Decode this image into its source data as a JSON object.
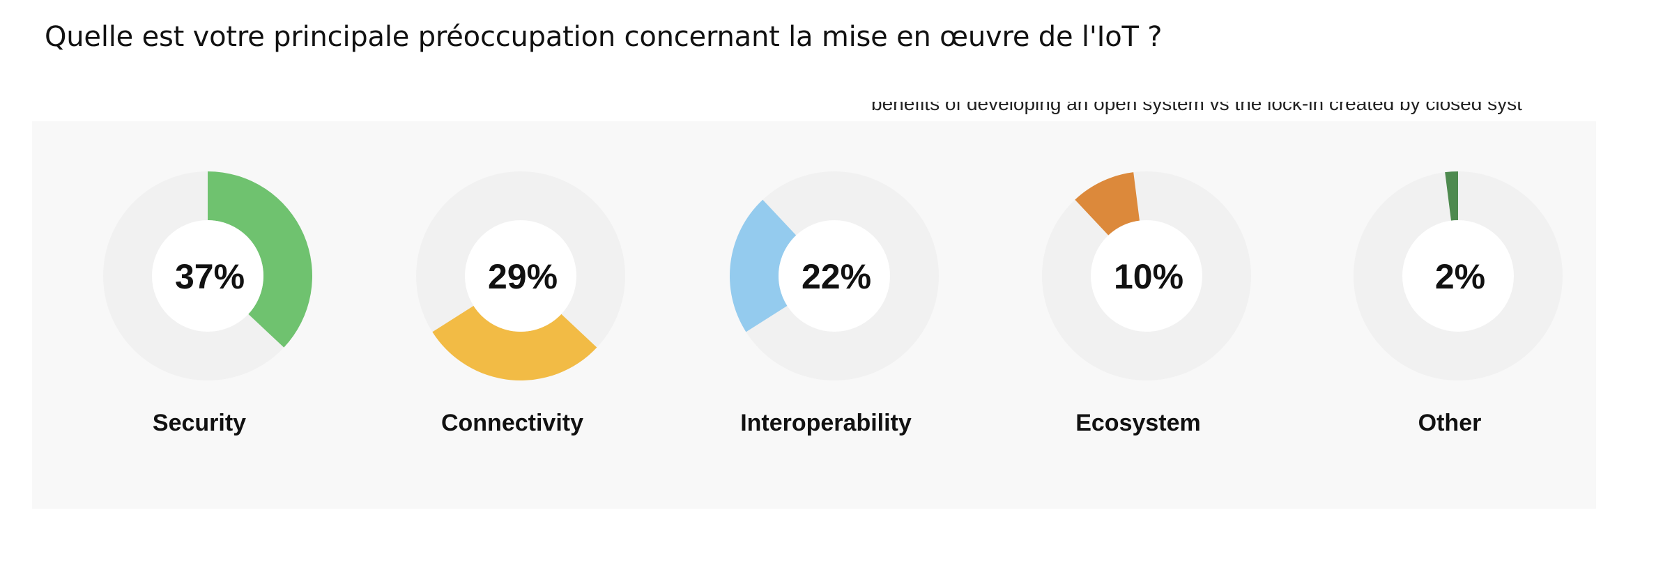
{
  "page": {
    "title": "Quelle est votre principale préoccupation concernant la mise en œuvre de l'IoT ?",
    "partial_text": "benefits of developing an open system vs the lock-in created by closed syst"
  },
  "chart_data": {
    "type": "pie",
    "style": "donut-row",
    "track_color": "#f1f1f1",
    "center_color": "#ffffff",
    "categories": [
      "Security",
      "Connectivity",
      "Interoperability",
      "Ecosystem",
      "Other"
    ],
    "values": [
      37,
      29,
      22,
      10,
      2
    ],
    "value_labels": [
      "37%",
      "29%",
      "22%",
      "10%",
      "2%"
    ],
    "start_percent": [
      0,
      37,
      66,
      88,
      98
    ],
    "colors": [
      "#6fc26f",
      "#f2bb45",
      "#94cbee",
      "#dc893b",
      "#4e8a4f"
    ],
    "legend": "none",
    "grid": false
  }
}
